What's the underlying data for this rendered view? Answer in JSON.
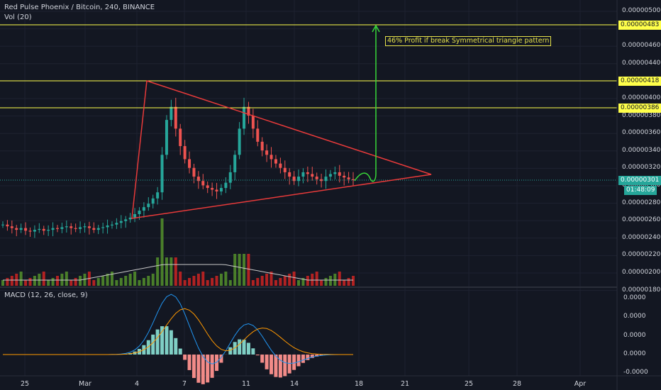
{
  "header": {
    "title": "Red Pulse Phoenix / Bitcoin, 240, BINANCE",
    "volume_label": "Vol (20)",
    "macd_label": "MACD (12, 26, close, 9)"
  },
  "annotation": "46% Profit if break Symmetrical triangle pattern",
  "price_axis": {
    "ticks": [
      "0.00000500",
      "0.00000480",
      "0.00000460",
      "0.00000440",
      "0.00000420",
      "0.00000400",
      "0.00000380",
      "0.00000360",
      "0.00000340",
      "0.00000320",
      "0.00000300",
      "0.00000280",
      "0.00000260",
      "0.00000240",
      "0.00000220",
      "0.00000200",
      "0.00000180"
    ],
    "tags": {
      "target": "0.00000483",
      "resistance_high": "0.00000418",
      "resistance": "0.00000386",
      "last_price": "0.00000301",
      "countdown": "01:48:09"
    }
  },
  "macd_axis": {
    "ticks": [
      "0.0000",
      "0.0000",
      "0.0000",
      "0.0000",
      "-0.0000"
    ]
  },
  "time_axis": {
    "ticks": [
      "25",
      "Mar",
      "4",
      "7",
      "11",
      "14",
      "18",
      "21",
      "25",
      "28",
      "Apr"
    ]
  },
  "colors": {
    "background": "#131722",
    "up": "#26a69a",
    "down": "#ef5350",
    "vol_up": "#4a7f2a",
    "vol_down": "#b22222",
    "horizontal_lines": "#ffff4a",
    "triangle": "#e83a3a",
    "arrow": "#39d839",
    "last_price_line": "#26a69a",
    "macd_line": "#2196f3",
    "signal_line": "#ff9800"
  },
  "chart_data": {
    "type": "candlestick",
    "title": "Red Pulse Phoenix / Bitcoin, 240, BINANCE",
    "horizontal_levels": [
      4.83e-06,
      4.18e-06,
      3.86e-06
    ],
    "last_price": 3.01e-06,
    "pattern": "Symmetrical triangle",
    "close_series_approx": [
      2.5e-06,
      2.48e-06,
      2.46e-06,
      2.44e-06,
      2.46e-06,
      2.43e-06,
      2.42e-06,
      2.44e-06,
      2.45e-06,
      2.43e-06,
      2.44e-06,
      2.46e-06,
      2.45e-06,
      2.47e-06,
      2.48e-06,
      2.46e-06,
      2.45e-06,
      2.47e-06,
      2.48e-06,
      2.46e-06,
      2.44e-06,
      2.46e-06,
      2.47e-06,
      2.49e-06,
      2.5e-06,
      2.52e-06,
      2.54e-06,
      2.56e-06,
      2.58e-06,
      2.62e-06,
      2.66e-06,
      2.7e-06,
      2.74e-06,
      2.8e-06,
      2.87e-06,
      3.3e-06,
      3.7e-06,
      3.85e-06,
      3.6e-06,
      3.4e-06,
      3.25e-06,
      3.15e-06,
      3.05e-06,
      3e-06,
      2.95e-06,
      2.92e-06,
      2.9e-06,
      2.88e-06,
      2.92e-06,
      2.98e-06,
      3.1e-06,
      3.3e-06,
      3.6e-06,
      3.85e-06,
      3.75e-06,
      3.6e-06,
      3.45e-06,
      3.35e-06,
      3.3e-06,
      3.25e-06,
      3.2e-06,
      3.15e-06,
      3.1e-06,
      3.05e-06,
      3e-06,
      3.05e-06,
      3.1e-06,
      3.08e-06,
      3.05e-06,
      3.02e-06,
      3e-06,
      3.05e-06,
      3.08e-06,
      3.1e-06,
      3.06e-06,
      3.04e-06,
      3.02e-06,
      3.01e-06
    ]
  }
}
